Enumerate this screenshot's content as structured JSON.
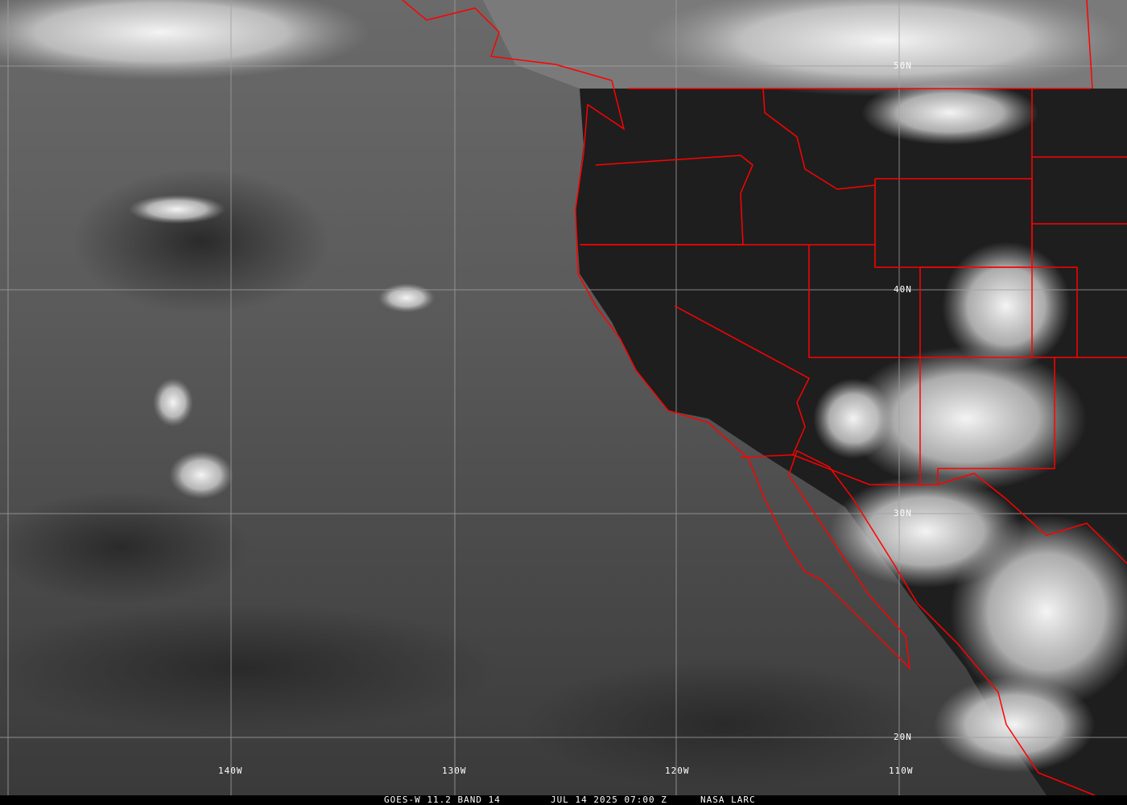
{
  "caption": {
    "satellite": "GOES-W 11.2 BAND 14",
    "datetime": "JUL 14 2025 07:00 Z",
    "credit": "NASA LARC"
  },
  "grid": {
    "latitudes": [
      "50N",
      "40N",
      "30N",
      "20N"
    ],
    "longitudes": [
      "140W",
      "130W",
      "120W",
      "110W"
    ]
  },
  "colors": {
    "borders": "#ff0000",
    "gridlines": "#a0a0a0",
    "caption_bg": "#000000",
    "caption_text": "#ffffff"
  }
}
